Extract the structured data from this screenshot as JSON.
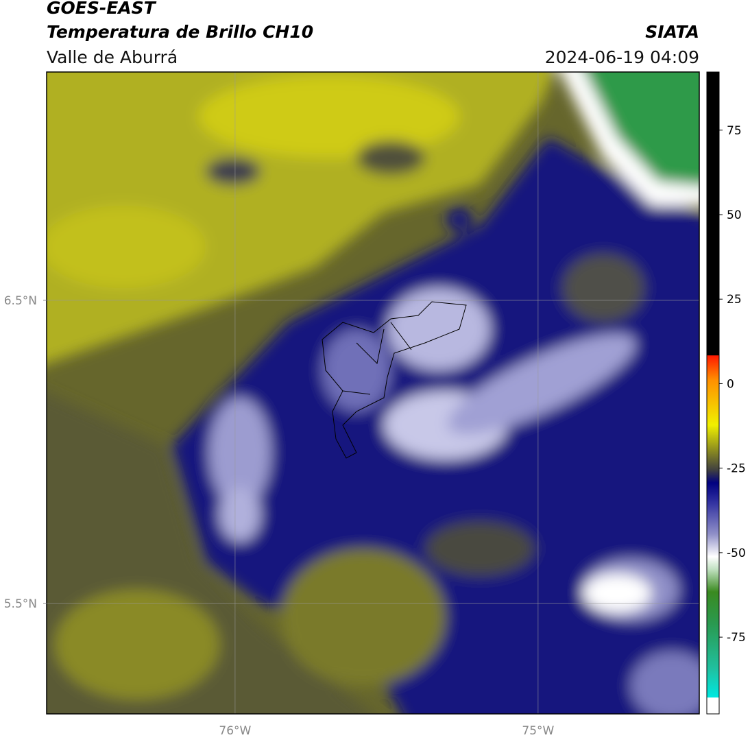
{
  "header": {
    "title": "GOES-EAST",
    "subtitle": "Temperatura de Brillo CH10",
    "region": "Valle de Aburrá",
    "source": "SIATA",
    "timestamp": "2024-06-19 04:09"
  },
  "map": {
    "xlim": [
      -76.622,
      -74.468
    ],
    "ylim": [
      5.136,
      7.253
    ],
    "xticks": [
      {
        "value": -76,
        "label": "76°W"
      },
      {
        "value": -75,
        "label": "75°W"
      }
    ],
    "yticks": [
      {
        "value": 6.5,
        "label": "6.5°N"
      },
      {
        "value": 5.5,
        "label": "5.5°N"
      }
    ],
    "grid": true
  },
  "colorbar": {
    "lim": [
      -97.7,
      92.2
    ],
    "ticks": [
      75,
      50,
      25,
      0,
      -25,
      -50,
      -75
    ]
  }
}
